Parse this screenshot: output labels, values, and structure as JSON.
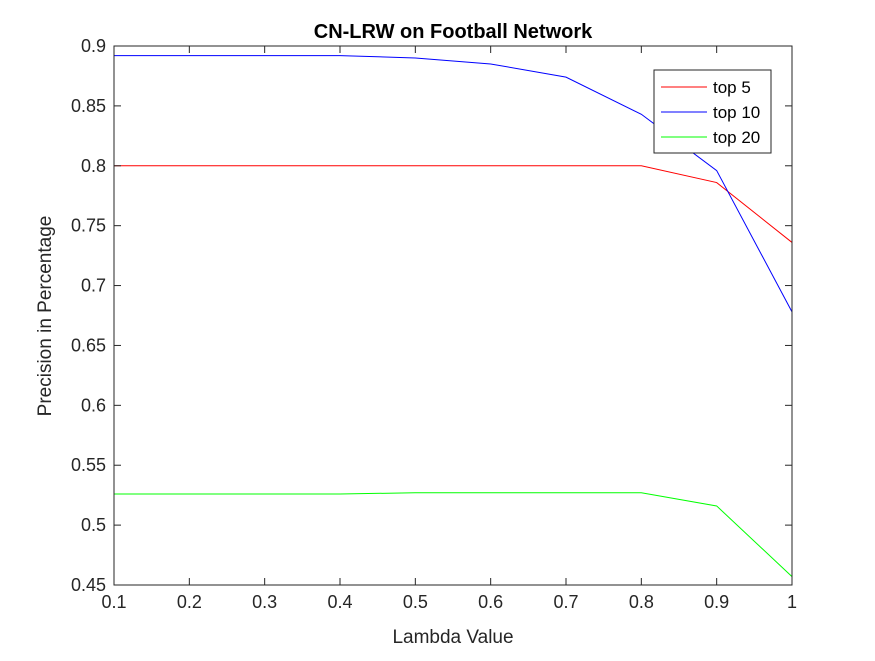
{
  "chart_data": {
    "type": "line",
    "title": "CN-LRW on Football Network",
    "xlabel": "Lambda Value",
    "ylabel": "Precision in Percentage",
    "xlim": [
      0.1,
      1.0
    ],
    "ylim": [
      0.45,
      0.9
    ],
    "x": [
      0.1,
      0.2,
      0.3,
      0.4,
      0.5,
      0.6,
      0.7,
      0.8,
      0.9,
      1.0
    ],
    "xticks": [
      "0.1",
      "0.2",
      "0.3",
      "0.4",
      "0.5",
      "0.6",
      "0.7",
      "0.8",
      "0.9",
      "1"
    ],
    "yticks": [
      "0.45",
      "0.5",
      "0.55",
      "0.6",
      "0.65",
      "0.7",
      "0.75",
      "0.8",
      "0.85",
      "0.9"
    ],
    "grid": false,
    "legend_position": "top-right",
    "series": [
      {
        "name": "top 5",
        "color": "#ff0000",
        "values": [
          0.8,
          0.8,
          0.8,
          0.8,
          0.8,
          0.8,
          0.8,
          0.8,
          0.786,
          0.736
        ]
      },
      {
        "name": "top 10",
        "color": "#0000ff",
        "values": [
          0.892,
          0.892,
          0.892,
          0.892,
          0.89,
          0.885,
          0.874,
          0.843,
          0.796,
          0.678
        ]
      },
      {
        "name": "top 20",
        "color": "#00ff00",
        "values": [
          0.526,
          0.526,
          0.526,
          0.526,
          0.527,
          0.527,
          0.527,
          0.527,
          0.516,
          0.457
        ]
      }
    ]
  }
}
